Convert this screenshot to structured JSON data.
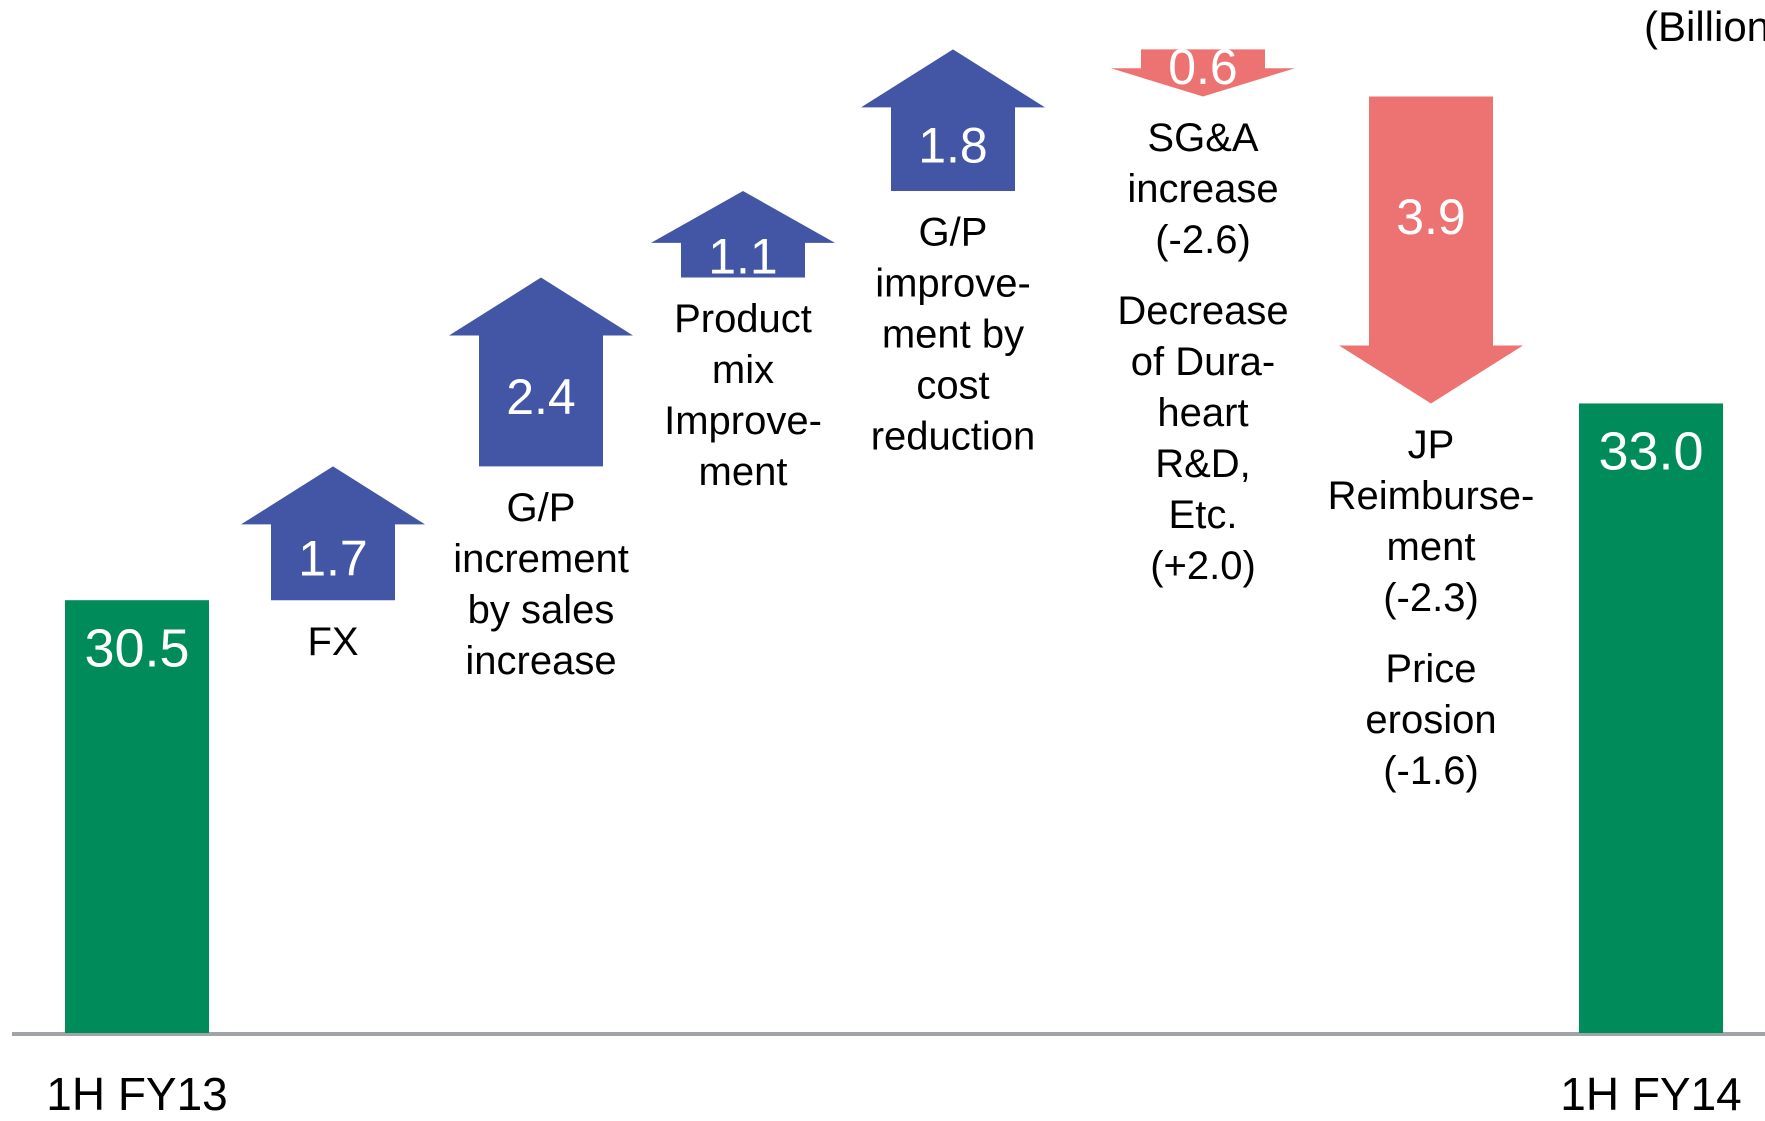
{
  "chart_data": {
    "type": "waterfall",
    "unit_label": "(Billions of yen)",
    "categories": [
      "1H FY13",
      [
        [
          "FX"
        ]
      ],
      [
        [
          "G/P",
          "increment",
          "by sales",
          "increase"
        ]
      ],
      [
        [
          "Product",
          "mix",
          "Improve-",
          "ment"
        ]
      ],
      [
        [
          "G/P",
          "improve-",
          "ment by",
          "cost",
          "reduction"
        ]
      ],
      [
        [
          "SG&A",
          "increase",
          "(-2.6)"
        ],
        [
          "Decrease",
          "of Dura-",
          "heart",
          "R&D,",
          "Etc.",
          "(+2.0)"
        ]
      ],
      [
        [
          "JP",
          "Reimburse-",
          "ment",
          "(-2.3)"
        ],
        [
          "Price",
          "erosion",
          "(-1.6)"
        ]
      ],
      "1H FY14"
    ],
    "measure": [
      "absolute",
      "relative",
      "relative",
      "relative",
      "relative",
      "relative",
      "relative",
      "absolute"
    ],
    "values": [
      30.5,
      1.7,
      2.4,
      1.1,
      1.8,
      -0.6,
      -3.9,
      33.0
    ],
    "value_labels": [
      "30.5",
      "1.7",
      "2.4",
      "1.1",
      "1.8",
      "0.6",
      "3.9",
      "33.0"
    ],
    "colors": {
      "absolute": "#008c5a",
      "increase": "#4355a5",
      "decrease": "#ed7373"
    },
    "ylim": [
      25,
      38
    ]
  }
}
